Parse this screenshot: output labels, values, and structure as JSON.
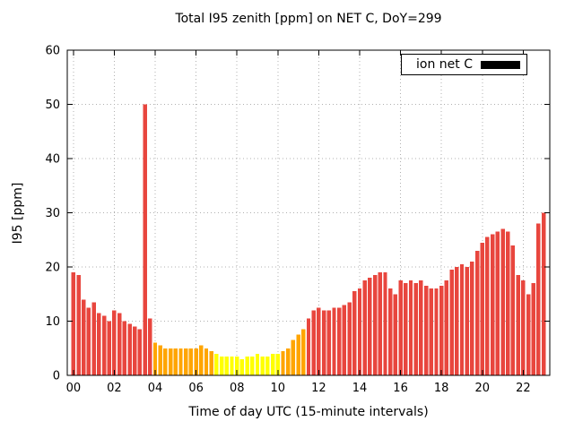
{
  "chart_data": {
    "type": "bar",
    "title": "Total I95 zenith [ppm] on NET C, DoY=299",
    "xlabel": "Time of day UTC (15-minute intervals)",
    "ylabel": "I95 [ppm]",
    "ylim": [
      0,
      60
    ],
    "xlim_hours": [
      -0.3,
      23.3
    ],
    "yticks": [
      0,
      10,
      20,
      30,
      40,
      50,
      60
    ],
    "xticks": [
      {
        "hour": 0,
        "label": "00"
      },
      {
        "hour": 2,
        "label": "02"
      },
      {
        "hour": 4,
        "label": "04"
      },
      {
        "hour": 6,
        "label": "06"
      },
      {
        "hour": 8,
        "label": "08"
      },
      {
        "hour": 10,
        "label": "10"
      },
      {
        "hour": 12,
        "label": "12"
      },
      {
        "hour": 14,
        "label": "14"
      },
      {
        "hour": 16,
        "label": "16"
      },
      {
        "hour": 18,
        "label": "18"
      },
      {
        "hour": 20,
        "label": "20"
      },
      {
        "hour": 22,
        "label": "22"
      }
    ],
    "grid": true,
    "legend": {
      "label": "ion net C",
      "position": "top-right",
      "swatch_color": "#000000"
    },
    "interval_minutes": 15,
    "colors": {
      "red": "#e8463e",
      "orange": "#ffa500",
      "yellow": "#ffff00",
      "grid": "#b0b0b0",
      "axis": "#000000"
    },
    "bar_fields": [
      "time",
      "value",
      "color"
    ],
    "bars": [
      [
        "00:00",
        19,
        "red"
      ],
      [
        "00:15",
        18.5,
        "red"
      ],
      [
        "00:30",
        14,
        "red"
      ],
      [
        "00:45",
        12.5,
        "red"
      ],
      [
        "01:00",
        13.5,
        "red"
      ],
      [
        "01:15",
        11.5,
        "red"
      ],
      [
        "01:30",
        11,
        "red"
      ],
      [
        "01:45",
        10,
        "red"
      ],
      [
        "02:00",
        12,
        "red"
      ],
      [
        "02:15",
        11.5,
        "red"
      ],
      [
        "02:30",
        10,
        "red"
      ],
      [
        "02:45",
        9.5,
        "red"
      ],
      [
        "03:00",
        9,
        "red"
      ],
      [
        "03:15",
        8.5,
        "red"
      ],
      [
        "03:30",
        50,
        "red"
      ],
      [
        "03:45",
        10.5,
        "red"
      ],
      [
        "04:00",
        6,
        "orange"
      ],
      [
        "04:15",
        5.5,
        "orange"
      ],
      [
        "04:30",
        5,
        "orange"
      ],
      [
        "04:45",
        5,
        "orange"
      ],
      [
        "05:00",
        5,
        "orange"
      ],
      [
        "05:15",
        5,
        "orange"
      ],
      [
        "05:30",
        5,
        "orange"
      ],
      [
        "05:45",
        5,
        "orange"
      ],
      [
        "06:00",
        5,
        "orange"
      ],
      [
        "06:15",
        5.5,
        "orange"
      ],
      [
        "06:30",
        5,
        "orange"
      ],
      [
        "06:45",
        4.5,
        "orange"
      ],
      [
        "07:00",
        4,
        "yellow"
      ],
      [
        "07:15",
        3.5,
        "yellow"
      ],
      [
        "07:30",
        3.5,
        "yellow"
      ],
      [
        "07:45",
        3.5,
        "yellow"
      ],
      [
        "08:00",
        3.5,
        "yellow"
      ],
      [
        "08:15",
        3,
        "yellow"
      ],
      [
        "08:30",
        3.5,
        "yellow"
      ],
      [
        "08:45",
        3.5,
        "yellow"
      ],
      [
        "09:00",
        4,
        "yellow"
      ],
      [
        "09:15",
        3.5,
        "yellow"
      ],
      [
        "09:30",
        3.5,
        "yellow"
      ],
      [
        "09:45",
        4,
        "yellow"
      ],
      [
        "10:00",
        4,
        "yellow"
      ],
      [
        "10:15",
        4.5,
        "orange"
      ],
      [
        "10:30",
        5,
        "orange"
      ],
      [
        "10:45",
        6.5,
        "orange"
      ],
      [
        "11:00",
        7.5,
        "orange"
      ],
      [
        "11:15",
        8.5,
        "orange"
      ],
      [
        "11:30",
        10.5,
        "red"
      ],
      [
        "11:45",
        12,
        "red"
      ],
      [
        "12:00",
        12.5,
        "red"
      ],
      [
        "12:15",
        12,
        "red"
      ],
      [
        "12:30",
        12,
        "red"
      ],
      [
        "12:45",
        12.5,
        "red"
      ],
      [
        "13:00",
        12.5,
        "red"
      ],
      [
        "13:15",
        13,
        "red"
      ],
      [
        "13:30",
        13.5,
        "red"
      ],
      [
        "13:45",
        15.5,
        "red"
      ],
      [
        "14:00",
        16,
        "red"
      ],
      [
        "14:15",
        17.5,
        "red"
      ],
      [
        "14:30",
        18,
        "red"
      ],
      [
        "14:45",
        18.5,
        "red"
      ],
      [
        "15:00",
        19,
        "red"
      ],
      [
        "15:15",
        19,
        "red"
      ],
      [
        "15:30",
        16,
        "red"
      ],
      [
        "15:45",
        15,
        "red"
      ],
      [
        "16:00",
        17.5,
        "red"
      ],
      [
        "16:15",
        17,
        "red"
      ],
      [
        "16:30",
        17.5,
        "red"
      ],
      [
        "16:45",
        17,
        "red"
      ],
      [
        "17:00",
        17.5,
        "red"
      ],
      [
        "17:15",
        16.5,
        "red"
      ],
      [
        "17:30",
        16,
        "red"
      ],
      [
        "17:45",
        16,
        "red"
      ],
      [
        "18:00",
        16.5,
        "red"
      ],
      [
        "18:15",
        17.5,
        "red"
      ],
      [
        "18:30",
        19.5,
        "red"
      ],
      [
        "18:45",
        20,
        "red"
      ],
      [
        "19:00",
        20.5,
        "red"
      ],
      [
        "19:15",
        20,
        "red"
      ],
      [
        "19:30",
        21,
        "red"
      ],
      [
        "19:45",
        23,
        "red"
      ],
      [
        "20:00",
        24.5,
        "red"
      ],
      [
        "20:15",
        25.5,
        "red"
      ],
      [
        "20:30",
        26,
        "red"
      ],
      [
        "20:45",
        26.5,
        "red"
      ],
      [
        "21:00",
        27,
        "red"
      ],
      [
        "21:15",
        26.5,
        "red"
      ],
      [
        "21:30",
        24,
        "red"
      ],
      [
        "21:45",
        18.5,
        "red"
      ],
      [
        "22:00",
        17.5,
        "red"
      ],
      [
        "22:15",
        15,
        "red"
      ],
      [
        "22:30",
        17,
        "red"
      ],
      [
        "22:45",
        28,
        "red"
      ],
      [
        "23:00",
        30,
        "red"
      ]
    ]
  }
}
